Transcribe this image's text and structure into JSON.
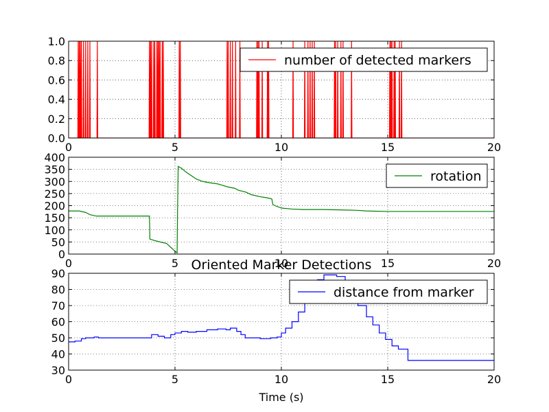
{
  "chart_data": [
    {
      "type": "line",
      "title": "",
      "xlabel": "",
      "ylabel": "",
      "xlim": [
        0,
        20
      ],
      "ylim": [
        0,
        1.0
      ],
      "xticks": [
        "0",
        "5",
        "10",
        "15",
        "20"
      ],
      "yticks": [
        "0.0",
        "0.2",
        "0.4",
        "0.6",
        "0.8",
        "1.0"
      ],
      "grid": true,
      "legend_position": "top-right",
      "series": [
        {
          "name": "number of detected markers",
          "color": "#ff0000",
          "render": "binary-pulses",
          "pulses": [
            0.45,
            0.5,
            0.55,
            0.6,
            0.7,
            0.8,
            0.9,
            1.0,
            1.35,
            3.8,
            3.85,
            3.9,
            4.0,
            4.05,
            4.15,
            4.2,
            4.25,
            4.3,
            4.4,
            4.45,
            5.2,
            5.25,
            7.45,
            7.5,
            7.6,
            7.7,
            7.85,
            8.05,
            8.85,
            8.9,
            8.95,
            9.1,
            9.35,
            9.4,
            10.55,
            11.1,
            11.25,
            11.35,
            11.45,
            11.55,
            12.5,
            12.55,
            12.65,
            12.8,
            12.9,
            13.3,
            15.1,
            15.15,
            15.2,
            15.3,
            15.35,
            15.55,
            15.65
          ]
        }
      ]
    },
    {
      "type": "line",
      "title": "",
      "xlabel": "",
      "ylabel": "",
      "xlim": [
        0,
        20
      ],
      "ylim": [
        0,
        400
      ],
      "xticks": [
        "0",
        "5",
        "10",
        "15",
        "20"
      ],
      "yticks": [
        "0",
        "50",
        "100",
        "150",
        "200",
        "250",
        "300",
        "350",
        "400"
      ],
      "grid": true,
      "legend_position": "top-right",
      "series": [
        {
          "name": "rotation",
          "color": "#008000",
          "render": "line",
          "points": [
            [
              0,
              178
            ],
            [
              0.5,
              178
            ],
            [
              0.8,
              172
            ],
            [
              1.0,
              163
            ],
            [
              1.3,
              157
            ],
            [
              2.0,
              157
            ],
            [
              3.0,
              157
            ],
            [
              3.8,
              157
            ],
            [
              3.82,
              62
            ],
            [
              4.0,
              57
            ],
            [
              4.3,
              50
            ],
            [
              4.6,
              44
            ],
            [
              4.8,
              28
            ],
            [
              5.0,
              12
            ],
            [
              5.1,
              5
            ],
            [
              5.12,
              180
            ],
            [
              5.15,
              362
            ],
            [
              5.3,
              355
            ],
            [
              5.5,
              340
            ],
            [
              5.8,
              322
            ],
            [
              6.0,
              310
            ],
            [
              6.3,
              300
            ],
            [
              6.6,
              295
            ],
            [
              7.0,
              290
            ],
            [
              7.2,
              285
            ],
            [
              7.5,
              277
            ],
            [
              7.8,
              272
            ],
            [
              8.0,
              263
            ],
            [
              8.3,
              257
            ],
            [
              8.6,
              245
            ],
            [
              9.0,
              237
            ],
            [
              9.3,
              233
            ],
            [
              9.55,
              228
            ],
            [
              9.6,
              205
            ],
            [
              9.7,
              200
            ],
            [
              10.0,
              190
            ],
            [
              10.5,
              186
            ],
            [
              11.0,
              184
            ],
            [
              12.0,
              184
            ],
            [
              13.0,
              182
            ],
            [
              13.5,
              181
            ],
            [
              14.0,
              178
            ],
            [
              14.5,
              177
            ],
            [
              15.0,
              176
            ],
            [
              16.0,
              176
            ],
            [
              18.0,
              176
            ],
            [
              20.0,
              176
            ]
          ]
        }
      ]
    },
    {
      "type": "line",
      "title": "Oriented Marker Detections",
      "xlabel": "Time (s)",
      "ylabel": "",
      "xlim": [
        0,
        20
      ],
      "ylim": [
        30,
        90
      ],
      "xticks": [
        "0",
        "5",
        "10",
        "15",
        "20"
      ],
      "yticks": [
        "30",
        "40",
        "50",
        "60",
        "70",
        "80",
        "90"
      ],
      "grid": true,
      "legend_position": "top-right",
      "series": [
        {
          "name": "distance from marker",
          "color": "#0000ff",
          "render": "step",
          "points": [
            [
              0,
              47.5
            ],
            [
              0.3,
              48
            ],
            [
              0.6,
              49.5
            ],
            [
              0.8,
              50
            ],
            [
              1.0,
              50
            ],
            [
              1.2,
              50.5
            ],
            [
              1.4,
              50
            ],
            [
              2.0,
              50
            ],
            [
              3.0,
              50
            ],
            [
              3.8,
              50
            ],
            [
              3.9,
              52
            ],
            [
              4.2,
              51
            ],
            [
              4.5,
              50
            ],
            [
              4.8,
              52
            ],
            [
              5.0,
              53
            ],
            [
              5.3,
              54
            ],
            [
              5.6,
              53.5
            ],
            [
              6.0,
              54
            ],
            [
              6.5,
              55
            ],
            [
              7.0,
              55.5
            ],
            [
              7.4,
              55
            ],
            [
              7.6,
              56
            ],
            [
              7.9,
              54
            ],
            [
              8.1,
              52
            ],
            [
              8.3,
              50
            ],
            [
              9.0,
              49.5
            ],
            [
              9.5,
              50
            ],
            [
              9.8,
              50.5
            ],
            [
              10.0,
              53
            ],
            [
              10.2,
              56
            ],
            [
              10.5,
              60
            ],
            [
              10.8,
              66
            ],
            [
              11.1,
              72
            ],
            [
              11.4,
              80
            ],
            [
              11.7,
              86
            ],
            [
              12.0,
              89
            ],
            [
              12.3,
              89
            ],
            [
              12.6,
              88
            ],
            [
              13.0,
              82
            ],
            [
              13.3,
              76
            ],
            [
              13.6,
              70
            ],
            [
              14.0,
              63
            ],
            [
              14.3,
              58
            ],
            [
              14.6,
              53
            ],
            [
              14.9,
              49
            ],
            [
              15.2,
              45
            ],
            [
              15.5,
              43
            ],
            [
              15.8,
              43
            ],
            [
              15.95,
              36
            ],
            [
              17.0,
              36
            ],
            [
              18.0,
              36
            ],
            [
              19.0,
              36
            ],
            [
              20.0,
              36
            ]
          ]
        }
      ]
    }
  ]
}
